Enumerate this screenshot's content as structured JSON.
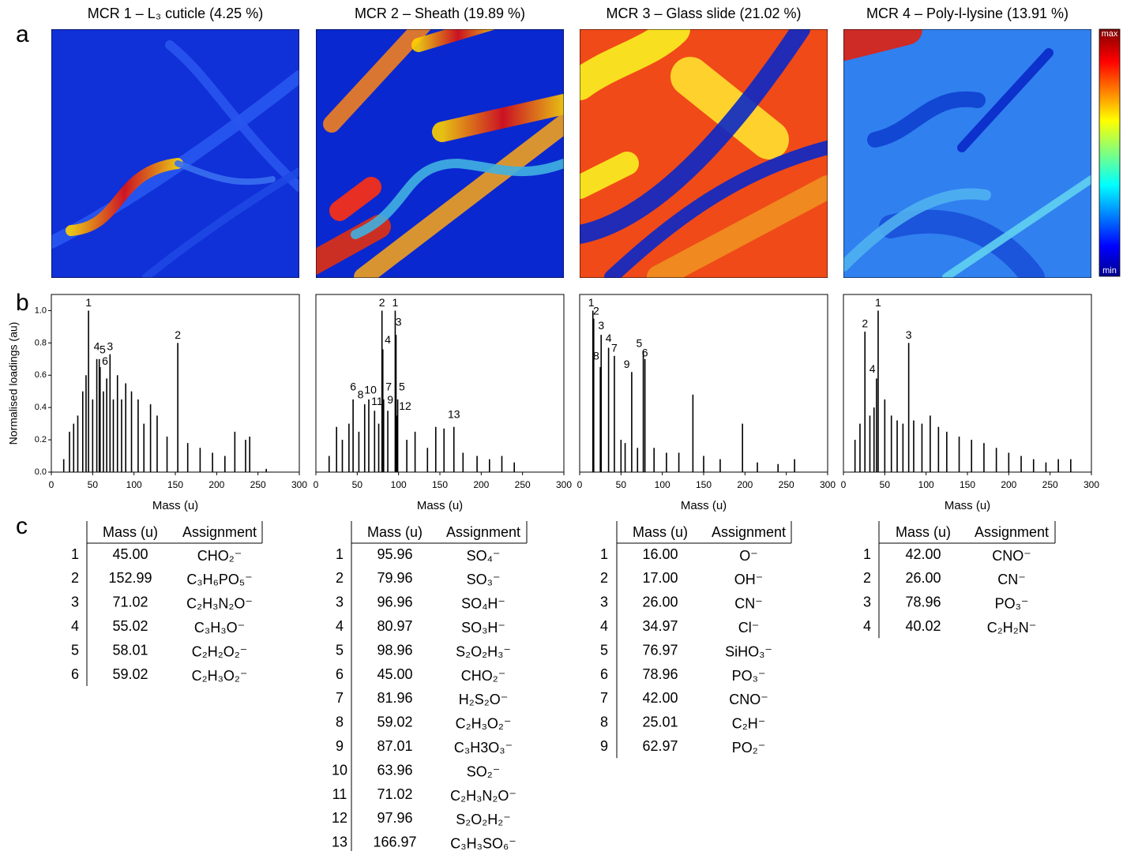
{
  "panel_labels": [
    "a",
    "b",
    "c"
  ],
  "colorbar": {
    "top": "max",
    "bottom": "min"
  },
  "chart_data": [
    {
      "type": "bar",
      "title": "MCR 1 – L₃ cuticle (4.25 %)",
      "xlabel": "Mass (u)",
      "ylabel": "Normalised loadings (au)",
      "xlim": [
        0,
        300
      ],
      "xticks": [
        0,
        50,
        100,
        150,
        200,
        250,
        300
      ],
      "ylim": [
        0,
        1.1
      ],
      "yticks": [
        {
          "value": 0,
          "label": "0.0"
        },
        {
          "value": 0.2,
          "label": "0.2"
        },
        {
          "value": 0.4,
          "label": "0.4"
        },
        {
          "value": 0.6,
          "label": "0.6"
        },
        {
          "value": 0.8,
          "label": "0.8"
        },
        {
          "value": 1.0,
          "label": "1.0"
        }
      ],
      "x": [
        15,
        22,
        27,
        32,
        38,
        42,
        45,
        50,
        55,
        58,
        59,
        63,
        67,
        71,
        75,
        80,
        85,
        90,
        97,
        105,
        112,
        120,
        128,
        140,
        153,
        165,
        180,
        195,
        210,
        222,
        235,
        240,
        260
      ],
      "values": [
        0.08,
        0.25,
        0.3,
        0.35,
        0.5,
        0.6,
        1.0,
        0.45,
        0.7,
        0.7,
        0.65,
        0.5,
        0.58,
        0.73,
        0.45,
        0.6,
        0.45,
        0.55,
        0.5,
        0.45,
        0.3,
        0.42,
        0.35,
        0.22,
        0.8,
        0.18,
        0.15,
        0.12,
        0.1,
        0.25,
        0.2,
        0.22,
        0.02
      ],
      "color": "#000000",
      "annotations": [
        {
          "text": "1",
          "x": 45,
          "y": 1.0
        },
        {
          "text": "2",
          "x": 153,
          "y": 0.8
        },
        {
          "text": "3",
          "x": 71,
          "y": 0.73
        },
        {
          "text": "4",
          "x": 55,
          "y": 0.73
        },
        {
          "text": "5",
          "x": 62,
          "y": 0.71
        },
        {
          "text": "6",
          "x": 65,
          "y": 0.64
        }
      ]
    },
    {
      "type": "bar",
      "title": "MCR 2 – Sheath (19.89 %)",
      "xlabel": "Mass (u)",
      "xlim": [
        0,
        300
      ],
      "xticks": [
        0,
        50,
        100,
        150,
        200,
        250,
        300
      ],
      "ylim": [
        0,
        1.1
      ],
      "x": [
        16,
        25,
        32,
        40,
        45,
        52,
        59,
        64,
        71,
        76,
        79.96,
        80.97,
        81.96,
        87.01,
        95.96,
        96.96,
        97.96,
        98.96,
        110,
        120,
        135,
        145,
        155,
        166.97,
        178,
        195,
        210,
        225,
        240
      ],
      "values": [
        0.1,
        0.28,
        0.2,
        0.3,
        0.45,
        0.25,
        0.42,
        0.45,
        0.38,
        0.3,
        1.0,
        0.76,
        0.45,
        0.38,
        1.0,
        0.85,
        0.35,
        0.45,
        0.2,
        0.25,
        0.15,
        0.28,
        0.27,
        0.28,
        0.12,
        0.1,
        0.08,
        0.1,
        0.06
      ],
      "color": "#000000",
      "annotations": [
        {
          "text": "1",
          "x": 95.96,
          "y": 1.0
        },
        {
          "text": "2",
          "x": 79.96,
          "y": 1.0
        },
        {
          "text": "3",
          "x": 100,
          "y": 0.88
        },
        {
          "text": "4",
          "x": 87,
          "y": 0.77
        },
        {
          "text": "5",
          "x": 104,
          "y": 0.48
        },
        {
          "text": "6",
          "x": 45,
          "y": 0.48
        },
        {
          "text": "7",
          "x": 88,
          "y": 0.48
        },
        {
          "text": "8",
          "x": 54,
          "y": 0.43
        },
        {
          "text": "9",
          "x": 90,
          "y": 0.4
        },
        {
          "text": "10",
          "x": 66,
          "y": 0.46
        },
        {
          "text": "11",
          "x": 74,
          "y": 0.39
        },
        {
          "text": "12",
          "x": 108,
          "y": 0.36
        },
        {
          "text": "13",
          "x": 166.97,
          "y": 0.31
        }
      ]
    },
    {
      "type": "bar",
      "title": "MCR 3 – Glass slide (21.02 %)",
      "xlabel": "Mass (u)",
      "xlim": [
        0,
        300
      ],
      "xticks": [
        0,
        50,
        100,
        150,
        200,
        250,
        300
      ],
      "ylim": [
        0,
        1.1
      ],
      "x": [
        16,
        17,
        25.01,
        26,
        34.97,
        42,
        50,
        55,
        62.97,
        70,
        76.97,
        78.96,
        90,
        105,
        120,
        137,
        150,
        170,
        197,
        215,
        240,
        260
      ],
      "values": [
        1.0,
        0.95,
        0.65,
        0.85,
        0.77,
        0.72,
        0.2,
        0.18,
        0.62,
        0.15,
        0.75,
        0.7,
        0.15,
        0.12,
        0.12,
        0.48,
        0.1,
        0.08,
        0.3,
        0.06,
        0.05,
        0.08
      ],
      "color": "#000000",
      "annotations": [
        {
          "text": "1",
          "x": 14,
          "y": 1.0
        },
        {
          "text": "2",
          "x": 20,
          "y": 0.95
        },
        {
          "text": "3",
          "x": 26,
          "y": 0.86
        },
        {
          "text": "4",
          "x": 35,
          "y": 0.78
        },
        {
          "text": "5",
          "x": 72,
          "y": 0.75
        },
        {
          "text": "6",
          "x": 79,
          "y": 0.69
        },
        {
          "text": "7",
          "x": 42,
          "y": 0.72
        },
        {
          "text": "8",
          "x": 20,
          "y": 0.67
        },
        {
          "text": "9",
          "x": 57,
          "y": 0.62
        }
      ]
    },
    {
      "type": "bar",
      "title": "MCR 4 – Poly-l-lysine (13.91 %)",
      "xlabel": "Mass (u)",
      "xlim": [
        0,
        300
      ],
      "xticks": [
        0,
        50,
        100,
        150,
        200,
        250,
        300
      ],
      "ylim": [
        0,
        1.1
      ],
      "x": [
        14,
        20,
        26,
        32,
        37,
        40.02,
        42,
        50,
        58,
        65,
        72,
        78.96,
        85,
        95,
        105,
        115,
        125,
        140,
        155,
        170,
        185,
        200,
        215,
        230,
        245,
        260,
        275
      ],
      "values": [
        0.2,
        0.3,
        0.87,
        0.35,
        0.4,
        0.58,
        1.0,
        0.45,
        0.35,
        0.32,
        0.3,
        0.8,
        0.32,
        0.3,
        0.35,
        0.28,
        0.25,
        0.22,
        0.2,
        0.18,
        0.15,
        0.12,
        0.1,
        0.08,
        0.06,
        0.08,
        0.08
      ],
      "color": "#000000",
      "annotations": [
        {
          "text": "1",
          "x": 42,
          "y": 1.0
        },
        {
          "text": "2",
          "x": 26,
          "y": 0.87
        },
        {
          "text": "3",
          "x": 78.96,
          "y": 0.8
        },
        {
          "text": "4",
          "x": 35,
          "y": 0.59
        }
      ]
    }
  ],
  "tables": [
    {
      "header": [
        "Mass (u)",
        "Assignment"
      ],
      "rows": [
        [
          "1",
          "45.00",
          "CHO₂⁻"
        ],
        [
          "2",
          "152.99",
          "C₃H₆PO₅⁻"
        ],
        [
          "3",
          "71.02",
          "C₂H₃N₂O⁻"
        ],
        [
          "4",
          "55.02",
          "C₃H₃O⁻"
        ],
        [
          "5",
          "58.01",
          "C₂H₂O₂⁻"
        ],
        [
          "6",
          "59.02",
          "C₂H₃O₂⁻"
        ]
      ]
    },
    {
      "header": [
        "Mass (u)",
        "Assignment"
      ],
      "rows": [
        [
          "1",
          "95.96",
          "SO₄⁻"
        ],
        [
          "2",
          "79.96",
          "SO₃⁻"
        ],
        [
          "3",
          "96.96",
          "SO₄H⁻"
        ],
        [
          "4",
          "80.97",
          "SO₃H⁻"
        ],
        [
          "5",
          "98.96",
          "S₂O₂H₃⁻"
        ],
        [
          "6",
          "45.00",
          "CHO₂⁻"
        ],
        [
          "7",
          "81.96",
          "H₂S₂O⁻"
        ],
        [
          "8",
          "59.02",
          "C₂H₃O₂⁻"
        ],
        [
          "9",
          "87.01",
          "C₃H3O₃⁻"
        ],
        [
          "10",
          "63.96",
          "SO₂⁻"
        ],
        [
          "11",
          "71.02",
          "C₂H₃N₂O⁻"
        ],
        [
          "12",
          "97.96",
          "S₂O₂H₂⁻"
        ],
        [
          "13",
          "166.97",
          "C₃H₃SO₆⁻"
        ]
      ]
    },
    {
      "header": [
        "Mass (u)",
        "Assignment"
      ],
      "rows": [
        [
          "1",
          "16.00",
          "O⁻"
        ],
        [
          "2",
          "17.00",
          "OH⁻"
        ],
        [
          "3",
          "26.00",
          "CN⁻"
        ],
        [
          "4",
          "34.97",
          "Cl⁻"
        ],
        [
          "5",
          "76.97",
          "SiHO₃⁻"
        ],
        [
          "6",
          "78.96",
          "PO₃⁻"
        ],
        [
          "7",
          "42.00",
          "CNO⁻"
        ],
        [
          "8",
          "25.01",
          "C₂H⁻"
        ],
        [
          "9",
          "62.97",
          "PO₂⁻"
        ]
      ]
    },
    {
      "header": [
        "Mass (u)",
        "Assignment"
      ],
      "rows": [
        [
          "1",
          "42.00",
          "CNO⁻"
        ],
        [
          "2",
          "26.00",
          "CN⁻"
        ],
        [
          "3",
          "78.96",
          "PO₃⁻"
        ],
        [
          "4",
          "40.02",
          "C₂H₂N⁻"
        ]
      ]
    }
  ]
}
